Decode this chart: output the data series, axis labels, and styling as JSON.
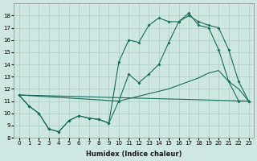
{
  "xlabel": "Humidex (Indice chaleur)",
  "bg_color": "#cde8e0",
  "grid_color": "#aaccc4",
  "line_color": "#1a6b5a",
  "xlim": [
    -0.5,
    23.5
  ],
  "ylim": [
    8,
    19
  ],
  "yticks": [
    8,
    9,
    10,
    11,
    12,
    13,
    14,
    15,
    16,
    17,
    18
  ],
  "xticks": [
    0,
    1,
    2,
    3,
    4,
    5,
    6,
    7,
    8,
    9,
    10,
    11,
    12,
    13,
    14,
    15,
    16,
    17,
    18,
    19,
    20,
    21,
    22,
    23
  ],
  "s1x": [
    0,
    1,
    2,
    3,
    4,
    5,
    6,
    7,
    8,
    9,
    10,
    11,
    12,
    13,
    14,
    15,
    16,
    17,
    18,
    19,
    20,
    21,
    22,
    23
  ],
  "s1y": [
    11.5,
    10.6,
    10.0,
    8.7,
    8.5,
    9.4,
    9.8,
    9.6,
    9.5,
    9.2,
    11.0,
    13.2,
    12.5,
    13.2,
    14.0,
    15.8,
    17.5,
    18.0,
    17.5,
    17.2,
    17.0,
    15.2,
    12.6,
    11.0
  ],
  "s2x": [
    0,
    1,
    2,
    3,
    4,
    5,
    6,
    7,
    8,
    9,
    10,
    11,
    12,
    13,
    14,
    15,
    16,
    17,
    18,
    19,
    20,
    21,
    22,
    23
  ],
  "s2y": [
    11.5,
    10.6,
    10.0,
    8.7,
    8.5,
    9.4,
    9.8,
    9.6,
    9.5,
    9.2,
    14.2,
    16.0,
    15.8,
    17.2,
    17.8,
    17.5,
    17.5,
    18.2,
    17.2,
    17.0,
    15.2,
    12.6,
    11.0,
    11.0
  ],
  "s3x": [
    0,
    23
  ],
  "s3y": [
    11.5,
    11.0
  ],
  "s4x": [
    0,
    10,
    11,
    12,
    13,
    14,
    15,
    16,
    17,
    18,
    19,
    20,
    21,
    22,
    23
  ],
  "s4y": [
    11.5,
    11.0,
    11.2,
    11.4,
    11.6,
    11.8,
    12.0,
    12.3,
    12.6,
    12.9,
    13.3,
    13.5,
    12.6,
    12.0,
    11.0
  ]
}
